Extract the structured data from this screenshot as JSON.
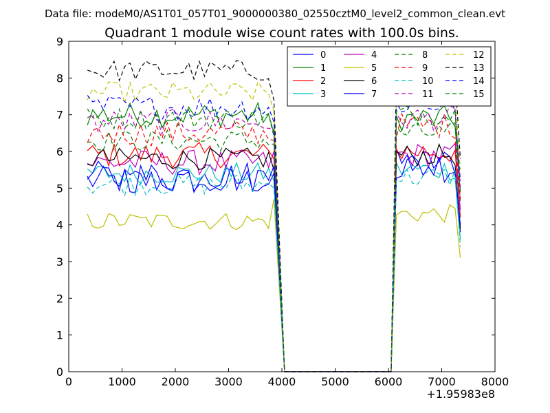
{
  "figure": {
    "suptitle": "Data file: modeM0/AS1T01_057T01_9000000380_02550cztM0_level2_common_clean.evt",
    "x_offset_label": "+1.95983e8"
  },
  "chart_data": {
    "type": "line",
    "title": "Quadrant 1 module wise count rates with 100.0s bins.",
    "xlabel": "",
    "ylabel": "",
    "xlim": [
      0,
      8000
    ],
    "ylim": [
      0,
      9
    ],
    "xticks": [
      0,
      1000,
      2000,
      3000,
      4000,
      5000,
      6000,
      7000,
      8000
    ],
    "xtick_labels": [
      "0",
      "1000",
      "2000",
      "3000",
      "4000",
      "5000",
      "6000",
      "7000",
      "8000"
    ],
    "yticks": [
      0,
      1,
      2,
      3,
      4,
      5,
      6,
      7,
      8,
      9
    ],
    "ytick_labels": [
      "0",
      "1",
      "2",
      "3",
      "4",
      "5",
      "6",
      "7",
      "8",
      "9"
    ],
    "legend_position": "top-right",
    "segments": {
      "seg1": {
        "x_start": 350,
        "x_step": 100,
        "n": 36
      },
      "gap_x": [
        4050,
        4150,
        4250,
        4350,
        4450,
        4550,
        4650,
        4750,
        4850,
        4950,
        5050,
        5150,
        5250,
        5350,
        5450,
        5550,
        5650,
        5750,
        5850,
        5950,
        6050
      ],
      "seg2": {
        "x_start": 6150,
        "x_step": 100,
        "n": 13
      }
    },
    "series": [
      {
        "name": "0",
        "color": "#0000ff",
        "dashed": false,
        "base": 5.2,
        "amp": 0.4,
        "seg2_base": 5.7,
        "end": 3.8
      },
      {
        "name": "1",
        "color": "#008000",
        "dashed": false,
        "base": 7.0,
        "amp": 0.35,
        "seg2_base": 6.9,
        "end": 4.9
      },
      {
        "name": "2",
        "color": "#ff0000",
        "dashed": false,
        "base": 5.9,
        "amp": 0.35,
        "seg2_base": 6.0,
        "end": 4.2
      },
      {
        "name": "3",
        "color": "#00bfbf",
        "dashed": false,
        "base": 5.4,
        "amp": 0.3,
        "seg2_base": 5.5,
        "end": 3.6
      },
      {
        "name": "4",
        "color": "#bf00bf",
        "dashed": false,
        "base": 5.7,
        "amp": 0.35,
        "seg2_base": 5.9,
        "end": 4.4
      },
      {
        "name": "5",
        "color": "#bfbf00",
        "dashed": false,
        "base": 4.1,
        "amp": 0.25,
        "seg2_base": 4.3,
        "end": 3.1
      },
      {
        "name": "6",
        "color": "#000000",
        "dashed": false,
        "base": 5.8,
        "amp": 0.3,
        "seg2_base": 5.9,
        "end": 3.9
      },
      {
        "name": "7",
        "color": "#0000ff",
        "dashed": false,
        "base": 5.3,
        "amp": 0.45,
        "seg2_base": 5.6,
        "end": 4.0
      },
      {
        "name": "8",
        "color": "#008000",
        "dashed": true,
        "base": 6.3,
        "amp": 0.3,
        "seg2_base": 6.5,
        "end": 4.6
      },
      {
        "name": "9",
        "color": "#ff0000",
        "dashed": true,
        "base": 6.5,
        "amp": 0.35,
        "seg2_base": 6.7,
        "end": 4.7
      },
      {
        "name": "10",
        "color": "#00bfbf",
        "dashed": true,
        "base": 5.1,
        "amp": 0.3,
        "seg2_base": 5.3,
        "end": 3.4
      },
      {
        "name": "11",
        "color": "#bf00bf",
        "dashed": true,
        "base": 6.8,
        "amp": 0.35,
        "seg2_base": 6.9,
        "end": 5.0
      },
      {
        "name": "12",
        "color": "#bfbf00",
        "dashed": true,
        "base": 7.6,
        "amp": 0.3,
        "seg2_base": 7.7,
        "end": 5.5
      },
      {
        "name": "13",
        "color": "#000000",
        "dashed": true,
        "base": 8.2,
        "amp": 0.3,
        "seg2_base": 8.2,
        "end": 5.8
      },
      {
        "name": "14",
        "color": "#0000ff",
        "dashed": true,
        "base": 7.2,
        "amp": 0.35,
        "seg2_base": 7.3,
        "end": 5.2
      },
      {
        "name": "15",
        "color": "#008000",
        "dashed": true,
        "base": 6.9,
        "amp": 0.3,
        "seg2_base": 7.0,
        "end": 4.8
      }
    ]
  }
}
